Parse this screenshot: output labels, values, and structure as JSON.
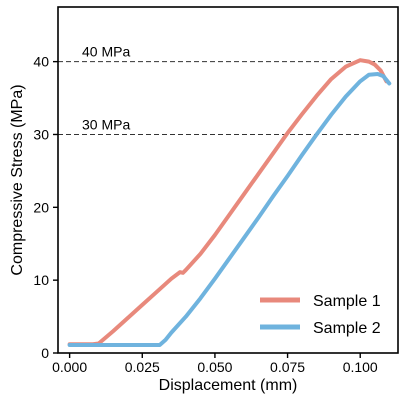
{
  "chart_data": {
    "type": "line",
    "title": "",
    "xlabel": "Displacement (mm)",
    "ylabel": "Compressive Stress (MPa)",
    "xlim": [
      -0.004,
      0.113
    ],
    "ylim": [
      0,
      47.5
    ],
    "xticks": [
      0.0,
      0.025,
      0.05,
      0.075,
      0.1
    ],
    "xtick_labels": [
      "0.000",
      "0.025",
      "0.050",
      "0.075",
      "0.100"
    ],
    "yticks": [
      0,
      10,
      20,
      30,
      40
    ],
    "ytick_labels": [
      "0",
      "10",
      "20",
      "30",
      "40"
    ],
    "grid": false,
    "legend_position": "lower-right",
    "reference_lines": [
      {
        "y": 40,
        "label": "40 MPa",
        "style": "dashed"
      },
      {
        "y": 30,
        "label": "30 MPa",
        "style": "dashed"
      }
    ],
    "series": [
      {
        "name": "Sample 1",
        "color": "#E8897C",
        "points": [
          [
            0.0,
            1.2
          ],
          [
            0.008,
            1.2
          ],
          [
            0.01,
            1.3
          ],
          [
            0.015,
            3.0
          ],
          [
            0.02,
            4.8
          ],
          [
            0.025,
            6.6
          ],
          [
            0.03,
            8.4
          ],
          [
            0.035,
            10.2
          ],
          [
            0.038,
            11.1
          ],
          [
            0.039,
            11.0
          ],
          [
            0.04,
            11.4
          ],
          [
            0.045,
            13.6
          ],
          [
            0.05,
            16.2
          ],
          [
            0.055,
            19.0
          ],
          [
            0.06,
            21.8
          ],
          [
            0.065,
            24.6
          ],
          [
            0.07,
            27.4
          ],
          [
            0.075,
            30.2
          ],
          [
            0.08,
            32.8
          ],
          [
            0.085,
            35.3
          ],
          [
            0.09,
            37.6
          ],
          [
            0.095,
            39.3
          ],
          [
            0.1,
            40.2
          ],
          [
            0.103,
            40.0
          ],
          [
            0.105,
            39.6
          ],
          [
            0.107,
            38.8
          ],
          [
            0.109,
            37.3
          ]
        ]
      },
      {
        "name": "Sample 2",
        "color": "#6FB3DE",
        "points": [
          [
            0.0,
            1.1
          ],
          [
            0.01,
            1.1
          ],
          [
            0.02,
            1.1
          ],
          [
            0.031,
            1.1
          ],
          [
            0.033,
            1.8
          ],
          [
            0.035,
            2.8
          ],
          [
            0.04,
            5.0
          ],
          [
            0.045,
            7.5
          ],
          [
            0.05,
            10.2
          ],
          [
            0.055,
            13.0
          ],
          [
            0.06,
            15.8
          ],
          [
            0.065,
            18.6
          ],
          [
            0.07,
            21.5
          ],
          [
            0.075,
            24.3
          ],
          [
            0.08,
            27.2
          ],
          [
            0.085,
            30.0
          ],
          [
            0.09,
            32.7
          ],
          [
            0.095,
            35.2
          ],
          [
            0.1,
            37.3
          ],
          [
            0.103,
            38.2
          ],
          [
            0.106,
            38.3
          ],
          [
            0.108,
            38.0
          ],
          [
            0.11,
            37.0
          ]
        ]
      }
    ]
  }
}
